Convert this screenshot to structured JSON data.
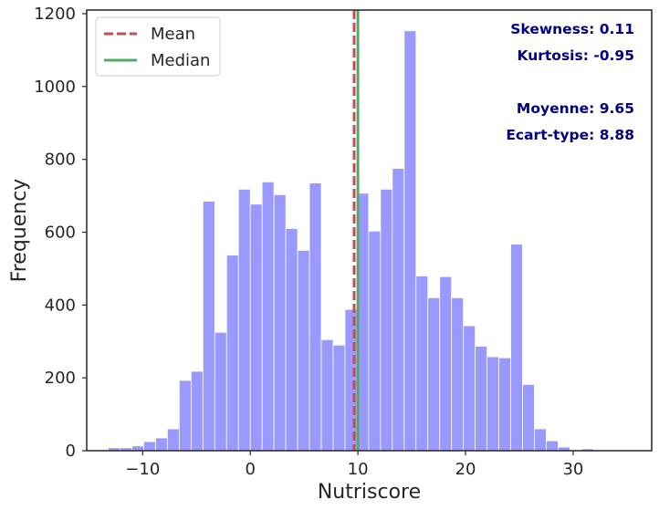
{
  "chart_data": {
    "type": "bar",
    "bin_edges": [
      -13.2,
      -12.1,
      -11.0,
      -9.9,
      -8.8,
      -7.7,
      -6.6,
      -5.5,
      -4.4,
      -3.3,
      -2.2,
      -1.1,
      0.0,
      1.1,
      2.2,
      3.3,
      4.4,
      5.5,
      6.6,
      7.7,
      8.8,
      9.9,
      11.0,
      12.1,
      13.2,
      14.3,
      15.4,
      16.5,
      17.6,
      18.7,
      19.8,
      20.9,
      22.0,
      23.1,
      24.2,
      25.3,
      26.4,
      27.5,
      28.6,
      29.7,
      30.8,
      31.9,
      33.0,
      34.1
    ],
    "values": [
      8,
      8,
      13,
      25,
      35,
      60,
      193,
      218,
      685,
      325,
      537,
      718,
      677,
      738,
      703,
      610,
      550,
      735,
      305,
      290,
      388,
      707,
      603,
      718,
      775,
      1153,
      480,
      420,
      478,
      420,
      343,
      287,
      258,
      255,
      567,
      182,
      60,
      27,
      10,
      0,
      5,
      0,
      2
    ],
    "xlabel": "Nutriscore",
    "ylabel": "Frequency",
    "xlim": [
      -15.2,
      37.3
    ],
    "ylim": [
      0,
      1210
    ],
    "xticks": [
      -10,
      0,
      10,
      20,
      30
    ],
    "xtick_labels": [
      "−10",
      "0",
      "10",
      "20",
      "30"
    ],
    "yticks": [
      0,
      200,
      400,
      600,
      800,
      1000,
      1200
    ],
    "ytick_labels": [
      "0",
      "200",
      "400",
      "600",
      "800",
      "1000",
      "1200"
    ],
    "mean_line": 9.65,
    "median_line": 10.0,
    "legend": [
      {
        "label": "Mean",
        "style": "dashed",
        "color": "#c44e52"
      },
      {
        "label": "Median",
        "style": "solid",
        "color": "#55a868"
      }
    ],
    "legend_position": "upper left",
    "annotations": [
      "Skewness: 0.11",
      "Kurtosis: -0.95",
      "Moyenne: 9.65",
      "Ecart-type: 8.88"
    ],
    "bar_color": "#9999ff",
    "annotation_color": "#000080",
    "grid": false
  }
}
